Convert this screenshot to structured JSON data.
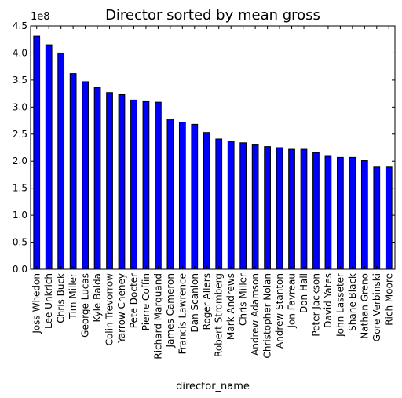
{
  "chart_data": {
    "type": "bar",
    "title": "Director sorted by mean gross",
    "xlabel": "director_name",
    "ylabel": "",
    "y_multiplier_label": "1e8",
    "ylim": [
      0,
      4.5
    ],
    "yticks": [
      "0.0",
      "0.5",
      "1.0",
      "1.5",
      "2.0",
      "2.5",
      "3.0",
      "3.5",
      "4.0",
      "4.5"
    ],
    "categories": [
      "Joss Whedon",
      "Lee Unkrich",
      "Chris Buck",
      "Tim Miller",
      "George Lucas",
      "Kyle Balda",
      "Colin Trevorrow",
      "Yarrow Cheney",
      "Pete Docter",
      "Pierre Coffin",
      "Richard Marquand",
      "James Cameron",
      "Francis Lawrence",
      "Dan Scanlon",
      "Roger Allers",
      "Robert Stromberg",
      "Mark Andrews",
      "Chris Miller",
      "Andrew Adamson",
      "Christopher Nolan",
      "Andrew Stanton",
      "Jon Favreau",
      "Don Hall",
      "Peter Jackson",
      "David Yates",
      "John Lasseter",
      "Shane Black",
      "Nathan Greno",
      "Gore Verbinski",
      "Rich Moore"
    ],
    "values": [
      4.31,
      4.15,
      4.0,
      3.62,
      3.47,
      3.36,
      3.27,
      3.23,
      3.13,
      3.1,
      3.09,
      2.78,
      2.72,
      2.68,
      2.53,
      2.41,
      2.37,
      2.34,
      2.3,
      2.27,
      2.25,
      2.22,
      2.22,
      2.16,
      2.09,
      2.07,
      2.07,
      2.01,
      1.89,
      1.89
    ],
    "bar_color": "#0000ff",
    "grid": false,
    "legend": "none"
  }
}
